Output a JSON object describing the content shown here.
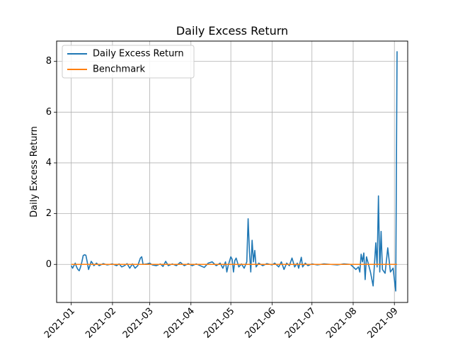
{
  "chart_data": {
    "type": "line",
    "title": "Daily Excess Return",
    "xlabel": "",
    "ylabel": "Daily Excess Return",
    "x_ticks": [
      "2021-01",
      "2021-02",
      "2021-03",
      "2021-04",
      "2021-05",
      "2021-06",
      "2021-07",
      "2021-08",
      "2021-09"
    ],
    "y_ticks": [
      0,
      2,
      4,
      6,
      8
    ],
    "xlim": [
      "2020-12-21",
      "2021-09-11"
    ],
    "ylim": [
      -1.5,
      8.8
    ],
    "grid": true,
    "legend_position": "top-left",
    "colors": {
      "excess": "#1f77b4",
      "benchmark": "#ff7f0e"
    },
    "series": [
      {
        "name": "Daily Excess Return",
        "points": [
          [
            "2021-01-01",
            -0.05
          ],
          [
            "2021-01-02",
            -0.15
          ],
          [
            "2021-01-03",
            -0.05
          ],
          [
            "2021-01-04",
            0.05
          ],
          [
            "2021-01-05",
            -0.1
          ],
          [
            "2021-01-06",
            -0.2
          ],
          [
            "2021-01-07",
            -0.25
          ],
          [
            "2021-01-08",
            -0.1
          ],
          [
            "2021-01-09",
            0.1
          ],
          [
            "2021-01-10",
            0.35
          ],
          [
            "2021-01-11",
            0.38
          ],
          [
            "2021-01-12",
            0.36
          ],
          [
            "2021-01-13",
            0.1
          ],
          [
            "2021-01-14",
            -0.2
          ],
          [
            "2021-01-15",
            -0.05
          ],
          [
            "2021-01-16",
            0.12
          ],
          [
            "2021-01-17",
            0.05
          ],
          [
            "2021-01-18",
            -0.05
          ],
          [
            "2021-01-19",
            0.0
          ],
          [
            "2021-01-20",
            0.05
          ],
          [
            "2021-01-22",
            -0.05
          ],
          [
            "2021-01-25",
            0.03
          ],
          [
            "2021-01-28",
            -0.02
          ],
          [
            "2021-02-01",
            0.02
          ],
          [
            "2021-02-04",
            -0.05
          ],
          [
            "2021-02-06",
            0.02
          ],
          [
            "2021-02-08",
            -0.1
          ],
          [
            "2021-02-10",
            -0.05
          ],
          [
            "2021-02-12",
            0.03
          ],
          [
            "2021-02-14",
            -0.15
          ],
          [
            "2021-02-16",
            0.02
          ],
          [
            "2021-02-18",
            -0.15
          ],
          [
            "2021-02-20",
            -0.05
          ],
          [
            "2021-02-22",
            0.25
          ],
          [
            "2021-02-23",
            0.3
          ],
          [
            "2021-02-24",
            0.0
          ],
          [
            "2021-02-27",
            0.02
          ],
          [
            "2021-03-01",
            0.05
          ],
          [
            "2021-03-03",
            -0.02
          ],
          [
            "2021-03-06",
            -0.05
          ],
          [
            "2021-03-09",
            0.02
          ],
          [
            "2021-03-11",
            -0.08
          ],
          [
            "2021-03-13",
            0.12
          ],
          [
            "2021-03-15",
            -0.05
          ],
          [
            "2021-03-18",
            0.02
          ],
          [
            "2021-03-21",
            -0.05
          ],
          [
            "2021-03-24",
            0.08
          ],
          [
            "2021-03-27",
            -0.05
          ],
          [
            "2021-03-30",
            0.03
          ],
          [
            "2021-04-02",
            -0.05
          ],
          [
            "2021-04-05",
            0.02
          ],
          [
            "2021-04-08",
            -0.05
          ],
          [
            "2021-04-11",
            -0.12
          ],
          [
            "2021-04-14",
            0.05
          ],
          [
            "2021-04-17",
            0.1
          ],
          [
            "2021-04-20",
            -0.05
          ],
          [
            "2021-04-23",
            0.05
          ],
          [
            "2021-04-25",
            -0.15
          ],
          [
            "2021-04-27",
            0.1
          ],
          [
            "2021-04-28",
            -0.3
          ],
          [
            "2021-04-29",
            -0.05
          ],
          [
            "2021-05-01",
            0.3
          ],
          [
            "2021-05-02",
            0.2
          ],
          [
            "2021-05-03",
            -0.3
          ],
          [
            "2021-05-04",
            0.15
          ],
          [
            "2021-05-05",
            0.25
          ],
          [
            "2021-05-07",
            -0.1
          ],
          [
            "2021-05-09",
            0.02
          ],
          [
            "2021-05-11",
            -0.15
          ],
          [
            "2021-05-13",
            0.1
          ],
          [
            "2021-05-14",
            1.8
          ],
          [
            "2021-05-15",
            0.5
          ],
          [
            "2021-05-16",
            -0.3
          ],
          [
            "2021-05-17",
            0.95
          ],
          [
            "2021-05-18",
            0.1
          ],
          [
            "2021-05-19",
            0.55
          ],
          [
            "2021-05-20",
            -0.1
          ],
          [
            "2021-05-22",
            0.05
          ],
          [
            "2021-05-25",
            -0.05
          ],
          [
            "2021-05-28",
            0.03
          ],
          [
            "2021-06-01",
            -0.02
          ],
          [
            "2021-06-03",
            0.05
          ],
          [
            "2021-06-06",
            -0.1
          ],
          [
            "2021-06-08",
            0.1
          ],
          [
            "2021-06-10",
            -0.2
          ],
          [
            "2021-06-12",
            0.05
          ],
          [
            "2021-06-14",
            -0.05
          ],
          [
            "2021-06-16",
            0.25
          ],
          [
            "2021-06-18",
            -0.1
          ],
          [
            "2021-06-20",
            0.05
          ],
          [
            "2021-06-21",
            -0.15
          ],
          [
            "2021-06-23",
            0.28
          ],
          [
            "2021-06-24",
            -0.1
          ],
          [
            "2021-06-26",
            0.05
          ],
          [
            "2021-06-28",
            -0.05
          ],
          [
            "2021-07-01",
            0.02
          ],
          [
            "2021-07-05",
            -0.02
          ],
          [
            "2021-07-10",
            0.02
          ],
          [
            "2021-07-15",
            0.0
          ],
          [
            "2021-07-20",
            -0.02
          ],
          [
            "2021-07-25",
            0.02
          ],
          [
            "2021-07-30",
            0.0
          ],
          [
            "2021-08-02",
            -0.15
          ],
          [
            "2021-08-03",
            -0.2
          ],
          [
            "2021-08-05",
            -0.1
          ],
          [
            "2021-08-06",
            -0.3
          ],
          [
            "2021-08-07",
            0.4
          ],
          [
            "2021-08-08",
            0.1
          ],
          [
            "2021-08-09",
            0.45
          ],
          [
            "2021-08-10",
            -0.6
          ],
          [
            "2021-08-11",
            0.3
          ],
          [
            "2021-08-12",
            0.1
          ],
          [
            "2021-08-14",
            -0.3
          ],
          [
            "2021-08-16",
            -0.85
          ],
          [
            "2021-08-18",
            0.85
          ],
          [
            "2021-08-19",
            -0.1
          ],
          [
            "2021-08-20",
            2.7
          ],
          [
            "2021-08-21",
            -0.3
          ],
          [
            "2021-08-22",
            1.3
          ],
          [
            "2021-08-23",
            -0.2
          ],
          [
            "2021-08-25",
            -0.35
          ],
          [
            "2021-08-27",
            0.65
          ],
          [
            "2021-08-29",
            -0.3
          ],
          [
            "2021-08-31",
            -0.15
          ],
          [
            "2021-09-02",
            -1.05
          ],
          [
            "2021-09-03",
            8.4
          ]
        ]
      },
      {
        "name": "Benchmark",
        "points": [
          [
            "2021-01-01",
            0.0
          ],
          [
            "2021-03-01",
            0.0
          ],
          [
            "2021-05-01",
            0.0
          ],
          [
            "2021-07-01",
            0.0
          ],
          [
            "2021-09-03",
            0.0
          ]
        ]
      }
    ]
  }
}
